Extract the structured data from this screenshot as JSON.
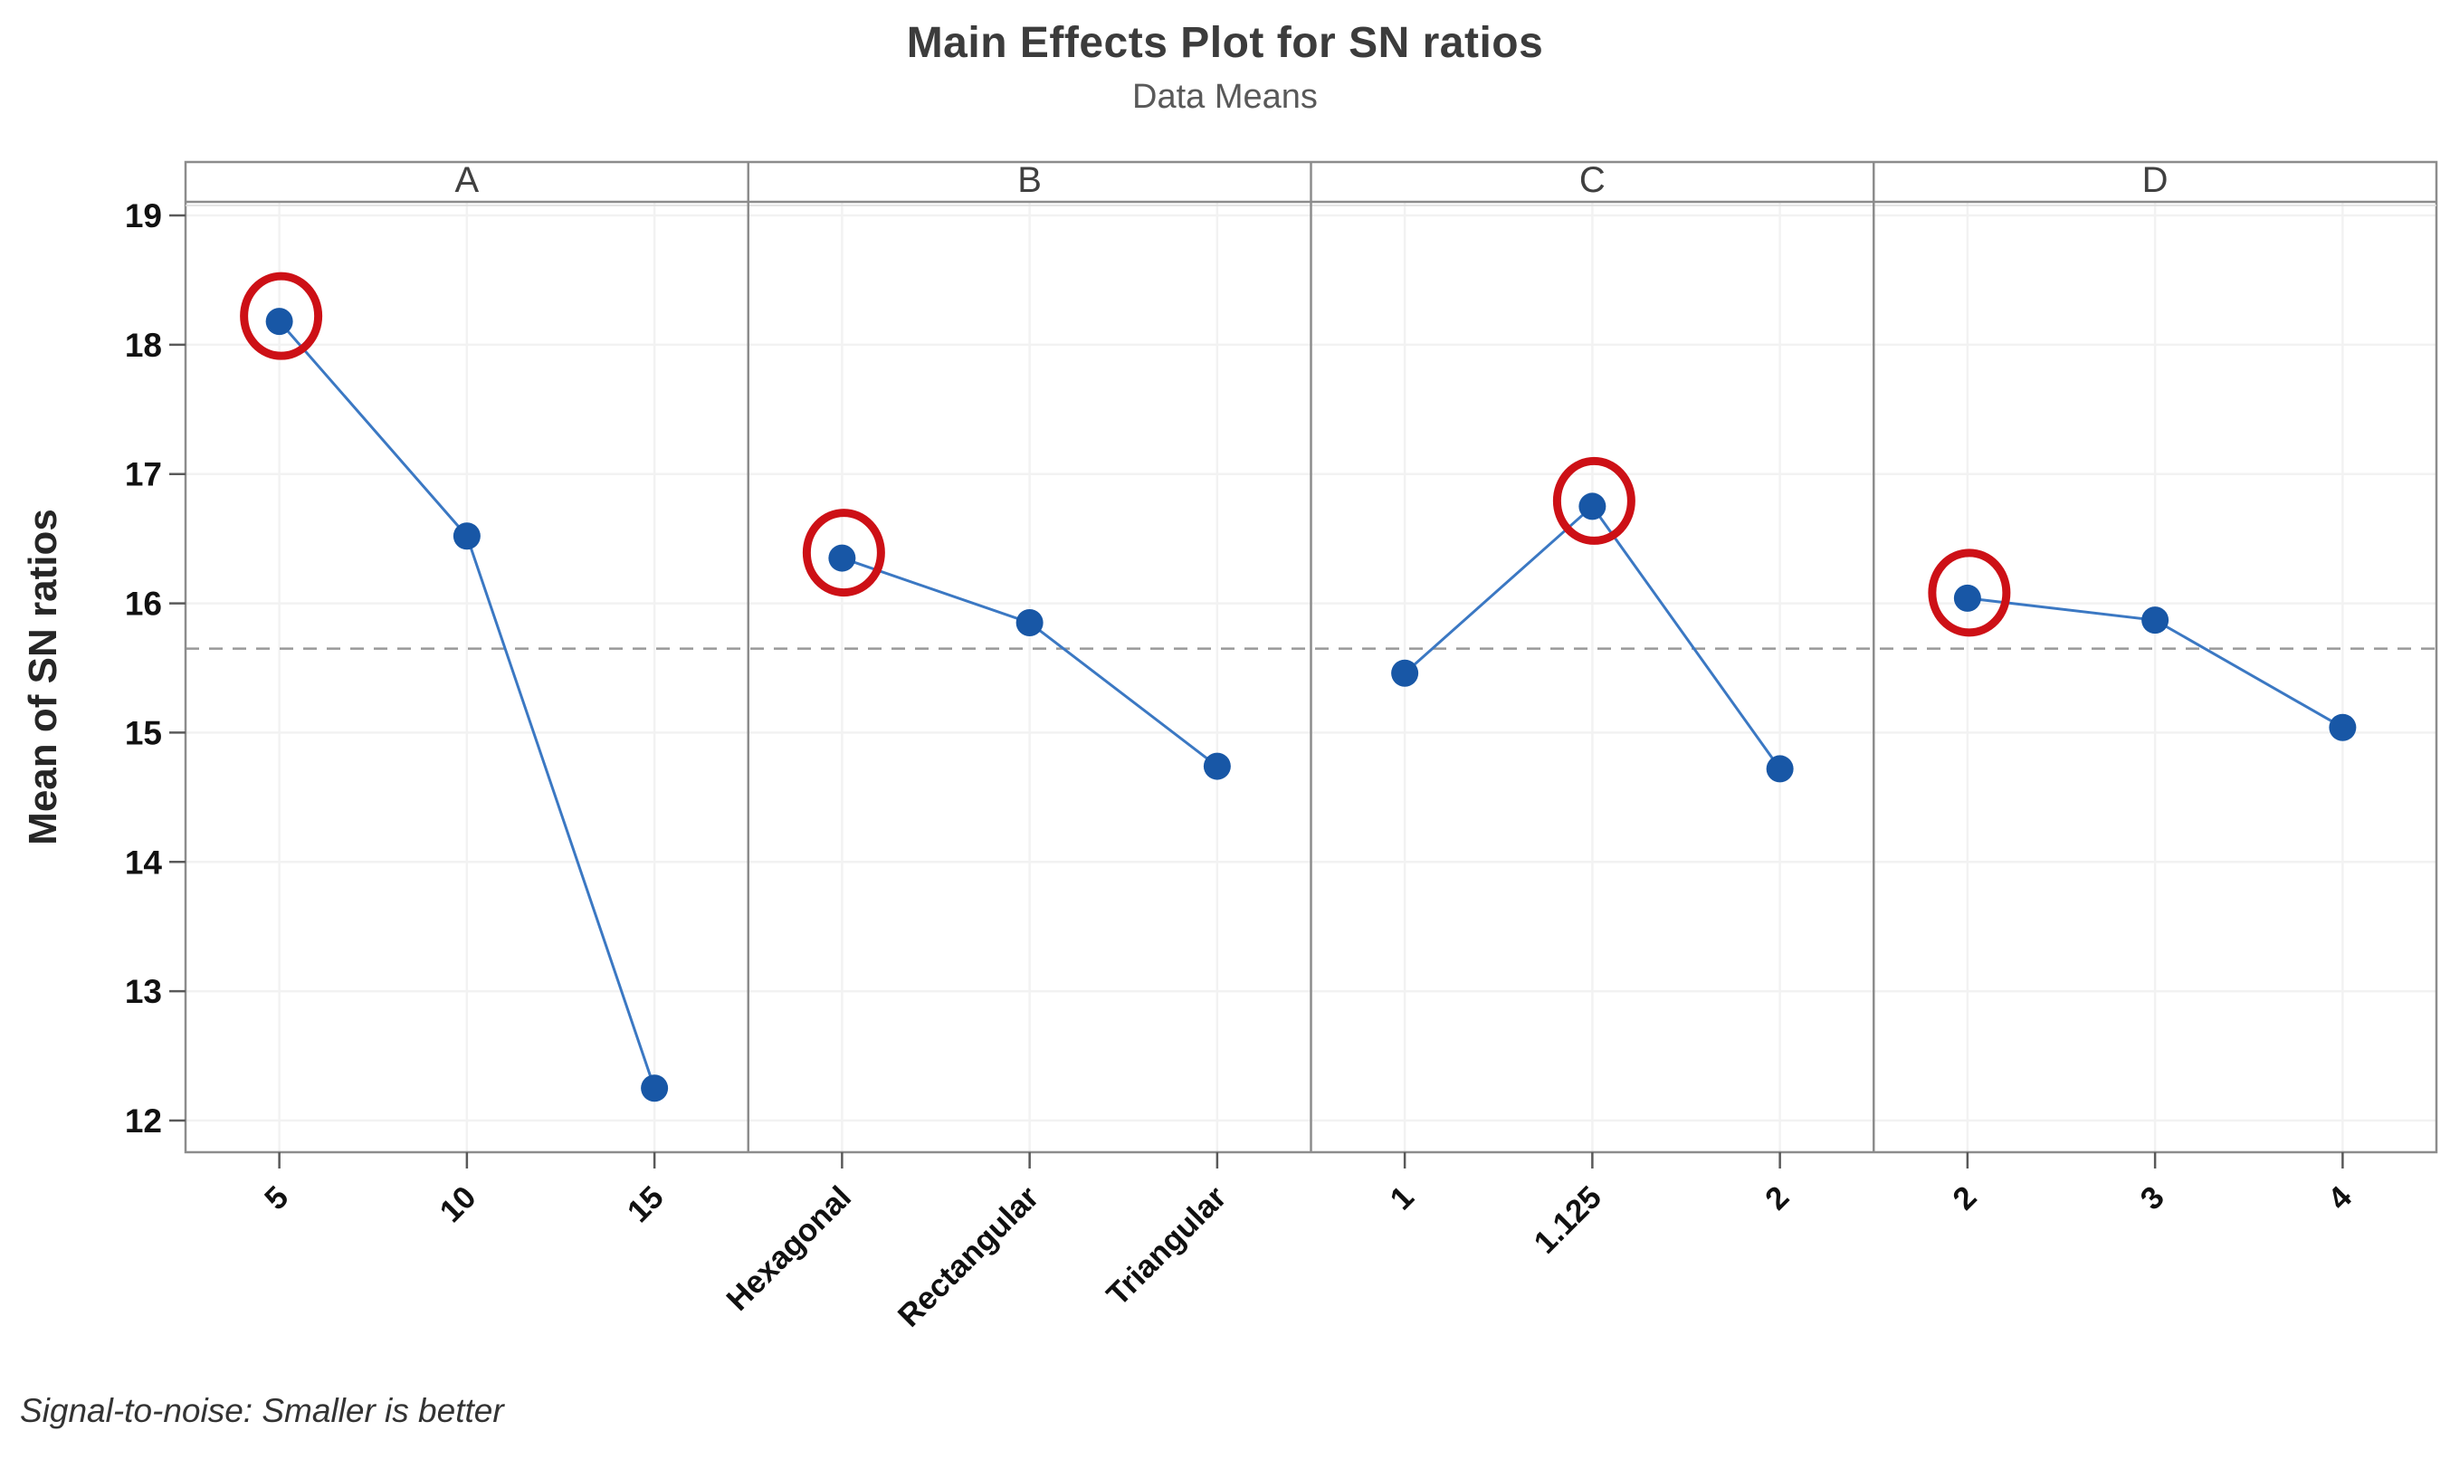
{
  "header": {
    "title": "Main Effects Plot for SN ratios",
    "subtitle": "Data Means"
  },
  "footer": {
    "note": "Signal-to-noise: Smaller is better"
  },
  "chart_data": {
    "type": "line",
    "title": "Main Effects Plot for SN ratios",
    "subtitle": "Data Means",
    "ylabel": "Mean of SN ratios",
    "xlabel": "",
    "ylim": [
      12,
      19
    ],
    "yticks": [
      12,
      13,
      14,
      15,
      16,
      17,
      18,
      19
    ],
    "grid": true,
    "legend": "none",
    "reference_line": 15.65,
    "panels": [
      {
        "label": "A",
        "categories": [
          "5",
          "10",
          "15"
        ],
        "values": [
          18.18,
          16.52,
          12.25
        ],
        "highlighted_index": 0
      },
      {
        "label": "B",
        "categories": [
          "Hexagonal",
          "Rectangular",
          "Triangular"
        ],
        "values": [
          16.35,
          15.85,
          14.74
        ],
        "highlighted_index": 0
      },
      {
        "label": "C",
        "categories": [
          "1",
          "1.125",
          "2"
        ],
        "values": [
          15.46,
          16.75,
          14.72
        ],
        "highlighted_index": 1
      },
      {
        "label": "D",
        "categories": [
          "2",
          "3",
          "4"
        ],
        "values": [
          16.04,
          15.87,
          15.04
        ],
        "highlighted_index": 0
      }
    ],
    "colors": {
      "point": "#1857A6",
      "line": "#3B78C3",
      "highlight_ring": "#CD1016",
      "reference": "#999999",
      "gridline": "#f2f2f2",
      "frame": "#8c8c8c",
      "tick": "#595959"
    }
  }
}
